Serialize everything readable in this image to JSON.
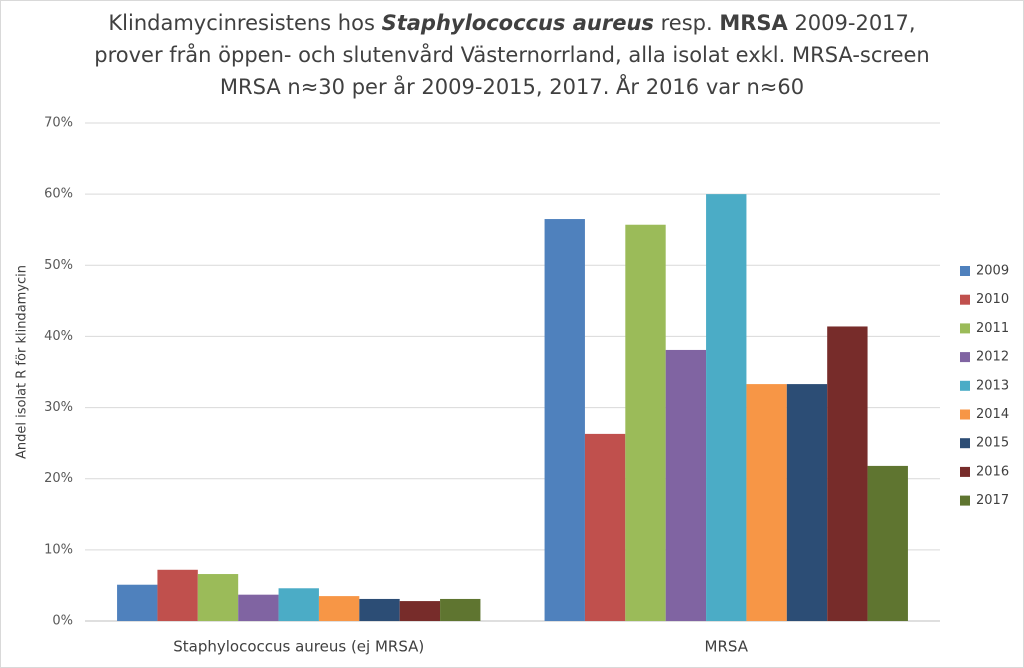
{
  "chart_data": {
    "type": "bar",
    "title": [
      [
        "Klindamycinresistens hos ",
        "Staphylococcus aureus",
        " resp. ",
        "MRSA",
        " 2009-2017,"
      ],
      [
        "prover från öppen- och slutenvård Västernorrland, alla isolat exkl. MRSA-screen"
      ],
      [
        "MRSA n≈30 per år 2009-2015, 2017. År 2016 var n≈60"
      ]
    ],
    "y_label": "Andel isolat R för klindamycin",
    "categories": [
      "Staphylococcus aureus (ej MRSA)",
      "MRSA"
    ],
    "series": [
      {
        "name": "2009",
        "color": "#4f81bd",
        "values": [
          5.1,
          56.5
        ]
      },
      {
        "name": "2010",
        "color": "#c0504d",
        "values": [
          7.2,
          26.3
        ]
      },
      {
        "name": "2011",
        "color": "#9bbb59",
        "values": [
          6.6,
          55.7
        ]
      },
      {
        "name": "2012",
        "color": "#8064a2",
        "values": [
          3.7,
          38.1
        ]
      },
      {
        "name": "2013",
        "color": "#4bacc6",
        "values": [
          4.6,
          60
        ]
      },
      {
        "name": "2014",
        "color": "#f79646",
        "values": [
          3.5,
          33.3
        ]
      },
      {
        "name": "2015",
        "color": "#2c4d75",
        "values": [
          3.1,
          33.3
        ]
      },
      {
        "name": "2016",
        "color": "#772c2a",
        "values": [
          2.8,
          41.4
        ]
      },
      {
        "name": "2017",
        "color": "#5f7530",
        "values": [
          3.1,
          21.8
        ]
      }
    ],
    "ylim": [
      0,
      70
    ],
    "yticks": [
      {
        "value": 0,
        "label": "0%"
      },
      {
        "value": 10,
        "label": "10%"
      },
      {
        "value": 20,
        "label": "20%"
      },
      {
        "value": 30,
        "label": "30%"
      },
      {
        "value": 40,
        "label": "40%"
      },
      {
        "value": 50,
        "label": "50%"
      },
      {
        "value": 60,
        "label": "60%"
      },
      {
        "value": 70,
        "label": "70%"
      }
    ],
    "grid": true,
    "legend": "right"
  }
}
